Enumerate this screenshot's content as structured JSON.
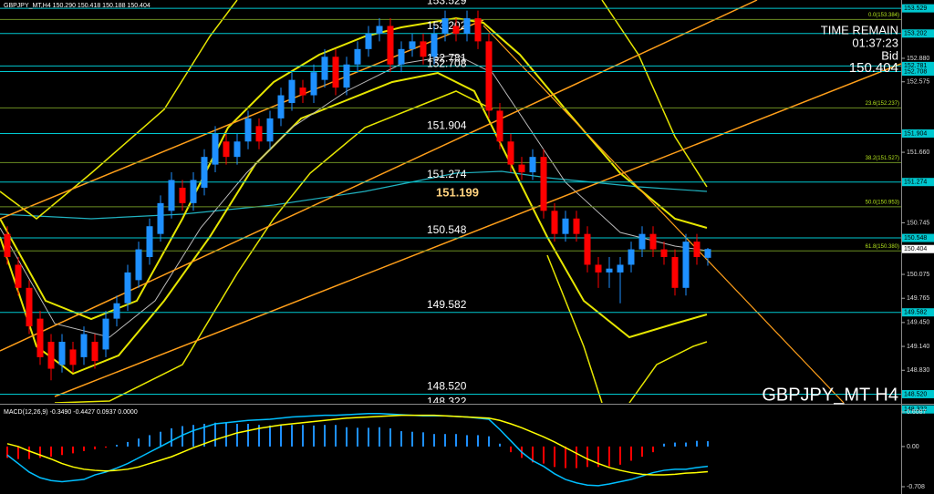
{
  "chart_data": [
    {
      "type": "candlestick",
      "title": "GBPJPY_MT,H4  150.290 150.418 150.188 150.404",
      "open": [
        150.6,
        150.2,
        149.9,
        149.5,
        149.2,
        148.9,
        149.1,
        149.0,
        149.2,
        149.1,
        149.5,
        149.7,
        150.0,
        150.3,
        150.6,
        150.9,
        151.2,
        151.0,
        151.2,
        151.5,
        151.8,
        151.6,
        151.8,
        152.0,
        151.8,
        152.1,
        152.3,
        152.5,
        152.4,
        152.6,
        152.9,
        152.5,
        152.8,
        153.0,
        153.2,
        153.3,
        152.8,
        153.0,
        153.1,
        152.9,
        153.2,
        153.3,
        153.2,
        153.4,
        153.1,
        152.2,
        151.8,
        151.5,
        151.4,
        151.6,
        150.9,
        150.6,
        150.8,
        150.6,
        150.2,
        150.1,
        150.1,
        150.2,
        150.4,
        150.6,
        150.4,
        150.3,
        149.9,
        150.5,
        150.29
      ],
      "high": [
        150.7,
        150.3,
        150.0,
        149.6,
        149.3,
        149.3,
        149.2,
        149.4,
        149.3,
        149.6,
        149.8,
        150.2,
        150.5,
        150.8,
        151.1,
        151.4,
        151.3,
        151.4,
        151.7,
        152.0,
        151.9,
        151.9,
        152.2,
        152.1,
        152.2,
        152.5,
        152.7,
        152.6,
        152.8,
        153.0,
        153.0,
        152.9,
        153.1,
        153.3,
        153.4,
        153.4,
        153.1,
        153.2,
        153.2,
        153.3,
        153.5,
        153.4,
        153.5,
        153.5,
        153.2,
        152.3,
        151.9,
        151.6,
        151.7,
        151.7,
        151.0,
        150.9,
        150.9,
        150.7,
        150.3,
        150.3,
        150.3,
        150.5,
        150.7,
        150.7,
        150.5,
        150.4,
        150.6,
        150.6,
        150.418
      ],
      "low": [
        150.2,
        149.8,
        149.3,
        148.9,
        148.7,
        148.8,
        148.8,
        148.9,
        148.85,
        149.0,
        149.4,
        149.6,
        149.9,
        150.2,
        150.5,
        150.8,
        150.9,
        150.9,
        151.1,
        151.4,
        151.5,
        151.5,
        151.7,
        151.7,
        151.7,
        152.0,
        152.2,
        152.3,
        152.3,
        152.5,
        152.4,
        152.4,
        152.7,
        152.9,
        153.1,
        152.7,
        152.7,
        152.9,
        152.8,
        152.8,
        153.1,
        153.1,
        153.1,
        153.0,
        152.1,
        151.7,
        151.4,
        151.3,
        151.3,
        150.8,
        150.5,
        150.5,
        150.5,
        150.1,
        149.9,
        149.9,
        149.7,
        150.1,
        150.3,
        150.3,
        150.2,
        149.8,
        149.8,
        150.2,
        150.188
      ],
      "close": [
        150.3,
        149.9,
        149.4,
        149.0,
        148.85,
        149.2,
        148.9,
        149.3,
        148.95,
        149.5,
        149.7,
        150.1,
        150.4,
        150.7,
        151.0,
        151.3,
        151.0,
        151.3,
        151.6,
        151.9,
        151.6,
        151.8,
        152.1,
        151.8,
        152.1,
        152.4,
        152.6,
        152.4,
        152.7,
        152.9,
        152.5,
        152.8,
        153.0,
        153.2,
        153.3,
        152.8,
        153.0,
        153.1,
        152.9,
        153.2,
        153.4,
        153.2,
        153.4,
        153.1,
        152.2,
        151.8,
        151.5,
        151.4,
        151.6,
        150.9,
        150.6,
        150.8,
        150.6,
        150.2,
        150.1,
        150.15,
        150.2,
        150.4,
        150.6,
        150.4,
        150.3,
        149.9,
        150.5,
        150.3,
        150.404
      ],
      "up_color": "#1e90ff",
      "down_color": "#ff0000",
      "ylim": [
        148.407,
        153.637
      ],
      "yticks": [
        {
          "value": 152.88,
          "label": "152.880"
        },
        152.575,
        {
          "value": 151.66,
          "label": "151.660"
        },
        150.745,
        150.075,
        149.765,
        {
          "value": 149.45,
          "label": "149.450"
        },
        {
          "value": 149.14,
          "label": "149.140"
        },
        {
          "value": 148.83,
          "label": "148.830"
        }
      ],
      "levels": [
        153.529,
        153.202,
        152.781,
        152.708,
        151.904,
        151.274,
        150.548,
        149.582,
        {
          "value": 148.52,
          "label": "148.520"
        },
        148.322
      ],
      "level_color": "#00c8d0",
      "pivot": 151.199,
      "pivot_color": "#ffd27f",
      "fib_levels": [
        {
          "value": 153.384,
          "label": "0.0(153.384)"
        },
        {
          "value": 152.237,
          "label": "23.6(152.237)"
        },
        {
          "value": 151.527,
          "label": "38.2(151.527)"
        },
        {
          "value": 150.953,
          "label": "50.0(150.953)"
        },
        {
          "value": 150.38,
          "label": "61.8(150.380)"
        }
      ],
      "fib_color": "#6b8e23",
      "time_remain_label": "TIME REMAIN",
      "time_remain": "01:37:23",
      "bid_label": "Bid",
      "bid": 150.404,
      "watermark": "GBPJPY_MT H4"
    },
    {
      "type": "macd",
      "title": "MACD(12,26,9) -0.3490 -0.4427 0.0937 0.0000",
      "histogram": [
        -0.2,
        -0.22,
        -0.22,
        -0.2,
        -0.18,
        -0.15,
        -0.12,
        -0.08,
        -0.05,
        -0.02,
        0.03,
        0.08,
        0.14,
        0.2,
        0.26,
        0.32,
        0.36,
        0.38,
        0.4,
        0.42,
        0.41,
        0.4,
        0.4,
        0.38,
        0.37,
        0.37,
        0.38,
        0.38,
        0.37,
        0.38,
        0.38,
        0.34,
        0.33,
        0.33,
        0.34,
        0.32,
        0.27,
        0.26,
        0.25,
        0.22,
        0.22,
        0.22,
        0.2,
        0.2,
        0.18,
        0.05,
        -0.1,
        -0.2,
        -0.28,
        -0.3,
        -0.36,
        -0.38,
        -0.38,
        -0.36,
        -0.36,
        -0.35,
        -0.32,
        -0.25,
        -0.18,
        -0.1,
        0.05,
        0.07,
        0.07,
        0.1,
        0.0937
      ],
      "up_color": "#1e90ff",
      "down_color": "#ff0000",
      "series": [
        {
          "color": "#00bfff",
          "values": [
            -0.15,
            -0.3,
            -0.45,
            -0.55,
            -0.6,
            -0.62,
            -0.6,
            -0.58,
            -0.5,
            -0.45,
            -0.38,
            -0.3,
            -0.2,
            -0.1,
            0.0,
            0.1,
            0.2,
            0.28,
            0.34,
            0.4,
            0.42,
            0.44,
            0.46,
            0.47,
            0.48,
            0.5,
            0.52,
            0.53,
            0.54,
            0.55,
            0.55,
            0.56,
            0.57,
            0.58,
            0.58,
            0.57,
            0.56,
            0.55,
            0.54,
            0.54,
            0.54,
            0.53,
            0.52,
            0.5,
            0.48,
            0.3,
            0.1,
            -0.1,
            -0.25,
            -0.35,
            -0.48,
            -0.58,
            -0.64,
            -0.68,
            -0.69,
            -0.66,
            -0.62,
            -0.58,
            -0.52,
            -0.46,
            -0.42,
            -0.4,
            -0.4,
            -0.37,
            -0.349
          ]
        },
        {
          "color": "#ffff00",
          "values": [
            0.05,
            0.0,
            -0.08,
            -0.15,
            -0.22,
            -0.3,
            -0.36,
            -0.4,
            -0.42,
            -0.43,
            -0.42,
            -0.4,
            -0.36,
            -0.3,
            -0.24,
            -0.18,
            -0.1,
            -0.02,
            0.05,
            0.12,
            0.18,
            0.24,
            0.28,
            0.32,
            0.35,
            0.38,
            0.4,
            0.42,
            0.44,
            0.46,
            0.48,
            0.5,
            0.51,
            0.52,
            0.53,
            0.54,
            0.55,
            0.55,
            0.55,
            0.55,
            0.54,
            0.53,
            0.52,
            0.51,
            0.5,
            0.46,
            0.4,
            0.33,
            0.25,
            0.17,
            0.08,
            -0.02,
            -0.12,
            -0.22,
            -0.3,
            -0.37,
            -0.42,
            -0.46,
            -0.49,
            -0.5,
            -0.5,
            -0.49,
            -0.47,
            -0.46,
            -0.4427
          ]
        }
      ],
      "ylim": [
        -0.708,
        0.6087
      ],
      "yticks": [
        0.6087,
        {
          "value": 0,
          "label": "0.00"
        },
        -0.708
      ]
    }
  ]
}
